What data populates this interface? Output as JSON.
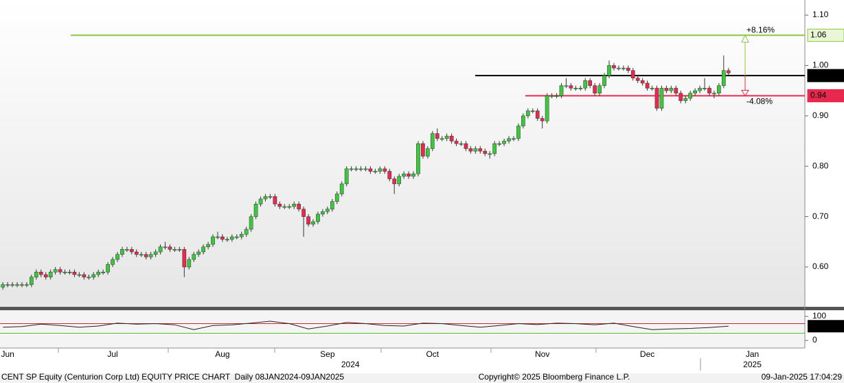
{
  "chart_data": {
    "type": "candlestick",
    "title": "CENT SP Equity (Centurion Corp Ltd) EQUITY PRICE CHART  Daily 08JAN2024-09JAN2025",
    "copyright": "Copyright© 2025 Bloomberg Finance L.P.",
    "timestamp": "09-Jan-2025 17:04:29",
    "xlim": [
      -0.6,
      168
    ],
    "xticks": [
      {
        "value": 1,
        "label": "Jun"
      },
      {
        "value": 23,
        "label": "Jul"
      },
      {
        "value": 46,
        "label": "Aug"
      },
      {
        "value": 68,
        "label": "Sep"
      },
      {
        "value": 90,
        "label": "Oct"
      },
      {
        "value": 113,
        "label": "Nov"
      },
      {
        "value": 135,
        "label": "Dec"
      },
      {
        "value": 157,
        "label": "Jan"
      }
    ],
    "year_labels": [
      {
        "value": 72.8,
        "label": "2024"
      },
      {
        "value": 157,
        "label": "2025"
      }
    ],
    "ylim": [
      0.521,
      1.13
    ],
    "yticks": [
      {
        "value": 1.1,
        "label": "1.10"
      },
      {
        "value": 1,
        "label": "1.00"
      },
      {
        "value": 0.9,
        "label": "0.90"
      },
      {
        "value": 0.8,
        "label": "0.80"
      },
      {
        "value": 0.7,
        "label": "0.70"
      },
      {
        "value": 0.6,
        "label": "0.60"
      }
    ],
    "up_color": "#3cc83c",
    "down_color": "#e8284c",
    "open": [
      0.56,
      0.565,
      0.565,
      0.565,
      0.565,
      0.565,
      0.565,
      0.58,
      0.59,
      0.585,
      0.58,
      0.59,
      0.595,
      0.59,
      0.59,
      0.59,
      0.585,
      0.585,
      0.58,
      0.58,
      0.585,
      0.59,
      0.59,
      0.605,
      0.615,
      0.625,
      0.635,
      0.635,
      0.63,
      0.625,
      0.625,
      0.62,
      0.625,
      0.63,
      0.64,
      0.64,
      0.635,
      0.635,
      0.635,
      0.6,
      0.615,
      0.625,
      0.63,
      0.64,
      0.645,
      0.66,
      0.66,
      0.655,
      0.655,
      0.66,
      0.66,
      0.665,
      0.675,
      0.7,
      0.725,
      0.735,
      0.74,
      0.74,
      0.725,
      0.72,
      0.72,
      0.72,
      0.725,
      0.715,
      0.7,
      0.685,
      0.69,
      0.705,
      0.71,
      0.715,
      0.73,
      0.745,
      0.765,
      0.795,
      0.795,
      0.795,
      0.795,
      0.795,
      0.79,
      0.79,
      0.795,
      0.79,
      0.775,
      0.765,
      0.78,
      0.785,
      0.78,
      0.785,
      0.845,
      0.82,
      0.835,
      0.865,
      0.855,
      0.855,
      0.86,
      0.85,
      0.845,
      0.845,
      0.835,
      0.83,
      0.835,
      0.83,
      0.825,
      0.825,
      0.845,
      0.845,
      0.85,
      0.855,
      0.855,
      0.88,
      0.9,
      0.91,
      0.91,
      0.895,
      0.89,
      0.94,
      0.94,
      0.94,
      0.96,
      0.96,
      0.955,
      0.955,
      0.955,
      0.97,
      0.96,
      0.945,
      0.96,
      0.98,
      1.0,
      0.995,
      0.995,
      0.995,
      0.99,
      0.975,
      0.97,
      0.965,
      0.955,
      0.955,
      0.915,
      0.955,
      0.95,
      0.955,
      0.945,
      0.93,
      0.935,
      0.945,
      0.95,
      0.955,
      0.955,
      0.945,
      0.945,
      0.96,
      0.99
    ],
    "high": [
      0.57,
      0.57,
      0.57,
      0.57,
      0.57,
      0.57,
      0.585,
      0.595,
      0.595,
      0.59,
      0.595,
      0.6,
      0.6,
      0.595,
      0.595,
      0.595,
      0.59,
      0.59,
      0.585,
      0.59,
      0.595,
      0.595,
      0.61,
      0.62,
      0.63,
      0.64,
      0.64,
      0.64,
      0.635,
      0.63,
      0.63,
      0.63,
      0.635,
      0.645,
      0.65,
      0.645,
      0.64,
      0.64,
      0.64,
      0.62,
      0.63,
      0.635,
      0.645,
      0.65,
      0.665,
      0.67,
      0.665,
      0.66,
      0.665,
      0.665,
      0.67,
      0.68,
      0.705,
      0.73,
      0.74,
      0.745,
      0.745,
      0.745,
      0.73,
      0.725,
      0.725,
      0.73,
      0.73,
      0.72,
      0.705,
      0.695,
      0.71,
      0.715,
      0.72,
      0.735,
      0.75,
      0.77,
      0.8,
      0.8,
      0.8,
      0.8,
      0.8,
      0.8,
      0.795,
      0.8,
      0.8,
      0.795,
      0.78,
      0.785,
      0.79,
      0.79,
      0.79,
      0.85,
      0.85,
      0.84,
      0.87,
      0.875,
      0.86,
      0.865,
      0.865,
      0.855,
      0.85,
      0.85,
      0.84,
      0.84,
      0.84,
      0.835,
      0.83,
      0.85,
      0.85,
      0.855,
      0.86,
      0.86,
      0.885,
      0.905,
      0.915,
      0.915,
      0.915,
      0.9,
      0.945,
      0.945,
      0.945,
      0.965,
      0.975,
      0.965,
      0.96,
      0.96,
      0.975,
      0.975,
      0.965,
      0.965,
      0.985,
      1.01,
      1.005,
      1.0,
      1.0,
      1.0,
      0.995,
      0.98,
      0.975,
      0.97,
      0.96,
      0.96,
      0.96,
      0.96,
      0.96,
      0.96,
      0.95,
      0.94,
      0.95,
      0.955,
      0.96,
      0.975,
      0.96,
      0.95,
      0.965,
      1.02,
      0.995
    ],
    "low": [
      0.555,
      0.56,
      0.56,
      0.56,
      0.56,
      0.56,
      0.56,
      0.575,
      0.58,
      0.575,
      0.575,
      0.585,
      0.585,
      0.585,
      0.585,
      0.58,
      0.58,
      0.575,
      0.575,
      0.575,
      0.58,
      0.585,
      0.585,
      0.6,
      0.61,
      0.62,
      0.63,
      0.625,
      0.62,
      0.62,
      0.615,
      0.615,
      0.62,
      0.625,
      0.635,
      0.63,
      0.63,
      0.63,
      0.58,
      0.595,
      0.61,
      0.62,
      0.625,
      0.635,
      0.64,
      0.655,
      0.65,
      0.65,
      0.65,
      0.655,
      0.655,
      0.66,
      0.67,
      0.695,
      0.72,
      0.73,
      0.735,
      0.72,
      0.715,
      0.715,
      0.715,
      0.715,
      0.71,
      0.66,
      0.68,
      0.68,
      0.685,
      0.7,
      0.705,
      0.71,
      0.725,
      0.74,
      0.76,
      0.79,
      0.79,
      0.79,
      0.79,
      0.785,
      0.785,
      0.785,
      0.785,
      0.77,
      0.745,
      0.76,
      0.775,
      0.775,
      0.775,
      0.78,
      0.815,
      0.815,
      0.83,
      0.85,
      0.85,
      0.85,
      0.845,
      0.84,
      0.84,
      0.83,
      0.825,
      0.825,
      0.825,
      0.82,
      0.815,
      0.82,
      0.84,
      0.84,
      0.845,
      0.85,
      0.85,
      0.875,
      0.895,
      0.905,
      0.89,
      0.875,
      0.885,
      0.935,
      0.935,
      0.935,
      0.955,
      0.95,
      0.95,
      0.95,
      0.95,
      0.955,
      0.94,
      0.94,
      0.955,
      0.975,
      0.99,
      0.99,
      0.99,
      0.985,
      0.97,
      0.965,
      0.96,
      0.95,
      0.95,
      0.91,
      0.91,
      0.945,
      0.945,
      0.94,
      0.925,
      0.925,
      0.93,
      0.94,
      0.945,
      0.95,
      0.94,
      0.935,
      0.94,
      0.955,
      0.98
    ],
    "close": [
      0.565,
      0.565,
      0.565,
      0.565,
      0.565,
      0.565,
      0.58,
      0.59,
      0.585,
      0.58,
      0.59,
      0.595,
      0.59,
      0.59,
      0.59,
      0.585,
      0.585,
      0.58,
      0.58,
      0.585,
      0.59,
      0.59,
      0.605,
      0.615,
      0.625,
      0.635,
      0.635,
      0.63,
      0.625,
      0.625,
      0.62,
      0.625,
      0.63,
      0.64,
      0.64,
      0.635,
      0.635,
      0.635,
      0.6,
      0.615,
      0.625,
      0.63,
      0.64,
      0.645,
      0.66,
      0.66,
      0.655,
      0.655,
      0.66,
      0.66,
      0.665,
      0.675,
      0.7,
      0.725,
      0.735,
      0.74,
      0.74,
      0.725,
      0.72,
      0.72,
      0.72,
      0.725,
      0.715,
      0.7,
      0.685,
      0.69,
      0.705,
      0.71,
      0.715,
      0.73,
      0.745,
      0.765,
      0.795,
      0.795,
      0.795,
      0.795,
      0.795,
      0.79,
      0.79,
      0.795,
      0.79,
      0.775,
      0.765,
      0.78,
      0.785,
      0.78,
      0.785,
      0.845,
      0.82,
      0.835,
      0.865,
      0.855,
      0.855,
      0.86,
      0.85,
      0.845,
      0.845,
      0.835,
      0.83,
      0.835,
      0.83,
      0.825,
      0.825,
      0.845,
      0.845,
      0.85,
      0.855,
      0.855,
      0.88,
      0.9,
      0.91,
      0.91,
      0.895,
      0.89,
      0.94,
      0.94,
      0.94,
      0.96,
      0.96,
      0.955,
      0.955,
      0.955,
      0.97,
      0.96,
      0.945,
      0.96,
      0.98,
      1.0,
      0.995,
      0.995,
      0.995,
      0.99,
      0.975,
      0.97,
      0.965,
      0.955,
      0.955,
      0.915,
      0.955,
      0.95,
      0.955,
      0.945,
      0.93,
      0.935,
      0.945,
      0.95,
      0.955,
      0.955,
      0.945,
      0.945,
      0.96,
      0.99,
      0.985
    ],
    "levels": [
      {
        "value": 1.06,
        "color": "#8cc63f",
        "tag_bg": "#eaf7d6",
        "tag_fg": "#000000"
      },
      {
        "value": 0.98,
        "color": "#000000",
        "tag_bg": "#000000",
        "tag_fg": "#ffffff"
      },
      {
        "value": 0.94,
        "color": "#e8284c",
        "tag_bg": "#e8284c",
        "tag_fg": "#ffffff"
      }
    ],
    "annotations": [
      "+8.16%",
      "-4.08%"
    ],
    "indicator": {
      "type": "line",
      "color": "#222222",
      "x": [
        0,
        4,
        8,
        12,
        16,
        20,
        24,
        28,
        32,
        36,
        40,
        44,
        48,
        52,
        56,
        60,
        64,
        68,
        72,
        76,
        80,
        84,
        88,
        92,
        96,
        100,
        104,
        108,
        112,
        116,
        120,
        124,
        128,
        132,
        136,
        140,
        144,
        148,
        152
      ],
      "values": [
        55,
        58,
        68,
        62,
        55,
        60,
        72,
        68,
        70,
        65,
        45,
        62,
        65,
        72,
        80,
        70,
        48,
        60,
        75,
        70,
        62,
        60,
        72,
        70,
        62,
        55,
        62,
        70,
        66,
        72,
        70,
        65,
        72,
        58,
        45,
        48,
        50,
        54,
        59.2606
      ],
      "ylim": [
        -28.6,
        125.7
      ],
      "yticks": [
        0,
        100
      ],
      "levels": [
        {
          "value": 70,
          "color": "#d02030"
        },
        {
          "value": 30,
          "color": "#50c030"
        }
      ]
    }
  }
}
